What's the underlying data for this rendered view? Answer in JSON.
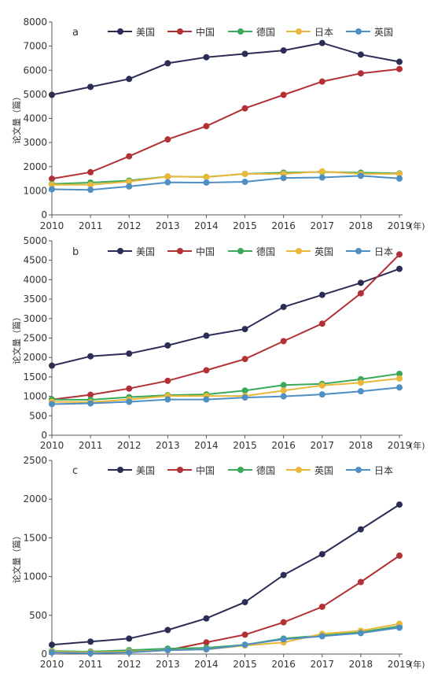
{
  "xunit": "(年)",
  "ylabel": "论文量（篇）",
  "chart_data": [
    {
      "type": "line",
      "panel_label": "a",
      "x": [
        2010,
        2011,
        2012,
        2013,
        2014,
        2015,
        2016,
        2017,
        2018,
        2019
      ],
      "xlabel": "(年)",
      "ylabel": "论文量（篇）",
      "ylim": [
        0,
        8000
      ],
      "yticks": [
        0,
        1000,
        2000,
        3000,
        4000,
        5000,
        6000,
        7000,
        8000
      ],
      "legend": "top",
      "series": [
        {
          "name": "美国",
          "color": "#2b2d55",
          "values": [
            4980,
            5310,
            5640,
            6290,
            6540,
            6680,
            6820,
            7130,
            6650,
            6350
          ]
        },
        {
          "name": "中国",
          "color": "#b23136",
          "values": [
            1500,
            1770,
            2430,
            3130,
            3680,
            4420,
            4980,
            5530,
            5870,
            6050
          ]
        },
        {
          "name": "德国",
          "color": "#3ba95a",
          "values": [
            1280,
            1340,
            1420,
            1590,
            1570,
            1700,
            1750,
            1780,
            1750,
            1720
          ]
        },
        {
          "name": "日本",
          "color": "#e9b83b",
          "values": [
            1250,
            1250,
            1380,
            1590,
            1570,
            1700,
            1700,
            1800,
            1700,
            1700
          ]
        },
        {
          "name": "英国",
          "color": "#4e8fc4",
          "values": [
            1060,
            1040,
            1180,
            1350,
            1340,
            1370,
            1530,
            1550,
            1620,
            1510
          ]
        }
      ]
    },
    {
      "type": "line",
      "panel_label": "b",
      "x": [
        2010,
        2011,
        2012,
        2013,
        2014,
        2015,
        2016,
        2017,
        2018,
        2019
      ],
      "xlabel": "(年)",
      "ylabel": "论文量（篇）",
      "ylim": [
        0,
        5000
      ],
      "yticks": [
        0,
        500,
        1000,
        1500,
        2000,
        2500,
        3000,
        3500,
        4000,
        4500,
        5000
      ],
      "legend": "top",
      "series": [
        {
          "name": "美国",
          "color": "#2b2d55",
          "values": [
            1790,
            2030,
            2100,
            2310,
            2560,
            2730,
            3300,
            3610,
            3920,
            4280
          ]
        },
        {
          "name": "中国",
          "color": "#b23136",
          "values": [
            920,
            1040,
            1200,
            1400,
            1670,
            1960,
            2420,
            2870,
            3650,
            4650
          ]
        },
        {
          "name": "德国",
          "color": "#3ba95a",
          "values": [
            920,
            910,
            980,
            1030,
            1050,
            1150,
            1290,
            1320,
            1440,
            1580
          ]
        },
        {
          "name": "英国",
          "color": "#e9b83b",
          "values": [
            860,
            850,
            920,
            1010,
            1010,
            1010,
            1150,
            1280,
            1350,
            1460
          ]
        },
        {
          "name": "日本",
          "color": "#4e8fc4",
          "values": [
            800,
            820,
            860,
            920,
            920,
            970,
            1000,
            1050,
            1130,
            1230
          ]
        }
      ]
    },
    {
      "type": "line",
      "panel_label": "c",
      "x": [
        2010,
        2011,
        2012,
        2013,
        2014,
        2015,
        2016,
        2017,
        2018,
        2019
      ],
      "xlabel": "(年)",
      "ylabel": "论文量（篇）",
      "ylim": [
        0,
        2500
      ],
      "yticks": [
        0,
        500,
        1000,
        1500,
        2000,
        2500
      ],
      "legend": "top",
      "series": [
        {
          "name": "美国",
          "color": "#2b2d55",
          "values": [
            120,
            160,
            200,
            310,
            460,
            670,
            1020,
            1290,
            1610,
            1930
          ]
        },
        {
          "name": "中国",
          "color": "#b23136",
          "values": [
            30,
            30,
            40,
            50,
            150,
            250,
            410,
            610,
            930,
            1270
          ]
        },
        {
          "name": "德国",
          "color": "#3ba95a",
          "values": [
            40,
            30,
            50,
            70,
            80,
            120,
            200,
            240,
            280,
            360
          ]
        },
        {
          "name": "英国",
          "color": "#e9b83b",
          "values": [
            30,
            20,
            30,
            50,
            60,
            110,
            150,
            260,
            300,
            390
          ]
        },
        {
          "name": "日本",
          "color": "#4e8fc4",
          "values": [
            20,
            10,
            20,
            50,
            60,
            120,
            190,
            230,
            270,
            340
          ]
        }
      ]
    }
  ]
}
